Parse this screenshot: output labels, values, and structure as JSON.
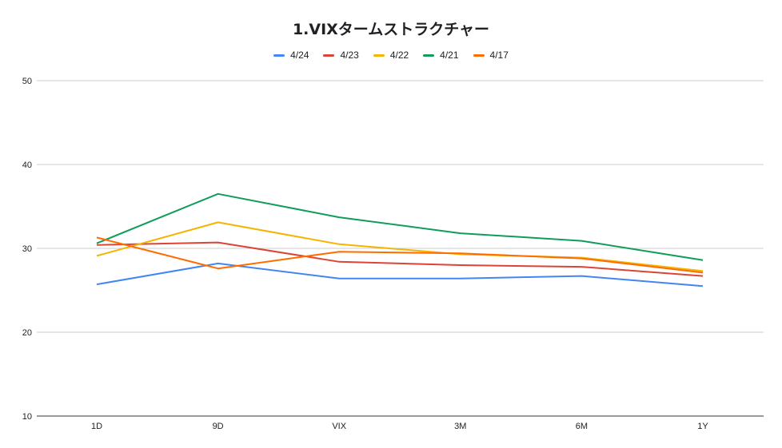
{
  "chart_data": {
    "type": "line",
    "title": "1.VIXタームストラクチャー",
    "xlabel": "",
    "ylabel": "",
    "categories": [
      "1D",
      "9D",
      "VIX",
      "3M",
      "6M",
      "1Y"
    ],
    "ylim": [
      10,
      50
    ],
    "yticks": [
      10,
      20,
      30,
      40,
      50
    ],
    "grid": true,
    "legend_position": "top",
    "series": [
      {
        "name": "4/24",
        "color": "#4285f4",
        "values": [
          25.7,
          28.2,
          26.4,
          26.4,
          26.7,
          25.5
        ]
      },
      {
        "name": "4/23",
        "color": "#db4437",
        "values": [
          30.4,
          30.7,
          28.4,
          28.0,
          27.8,
          26.7
        ]
      },
      {
        "name": "4/22",
        "color": "#f4b400",
        "values": [
          29.1,
          33.1,
          30.5,
          29.3,
          28.9,
          27.3
        ]
      },
      {
        "name": "4/21",
        "color": "#0f9d58",
        "values": [
          30.6,
          36.5,
          33.7,
          31.8,
          30.9,
          28.6
        ]
      },
      {
        "name": "4/17",
        "color": "#ff6d01",
        "values": [
          31.3,
          27.6,
          29.6,
          29.4,
          28.8,
          27.1
        ]
      }
    ]
  }
}
